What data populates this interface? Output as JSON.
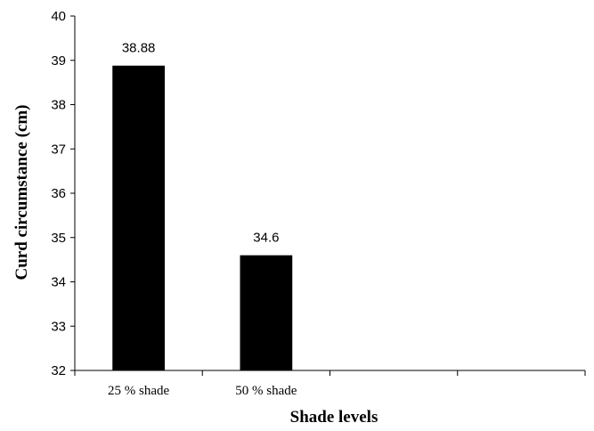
{
  "chart_data": {
    "type": "bar",
    "categories": [
      "25 % shade",
      "50 % shade",
      "",
      ""
    ],
    "values": [
      38.88,
      34.6,
      null,
      null
    ],
    "data_labels": [
      "38.88",
      "34.6",
      "",
      ""
    ],
    "xlabel": "Shade levels",
    "ylabel": "Curd circumstance (cm)",
    "ylim": [
      32,
      40
    ],
    "yticks": [
      32,
      33,
      34,
      35,
      36,
      37,
      38,
      39,
      40
    ],
    "grid": false,
    "bar_color": "#000000"
  }
}
